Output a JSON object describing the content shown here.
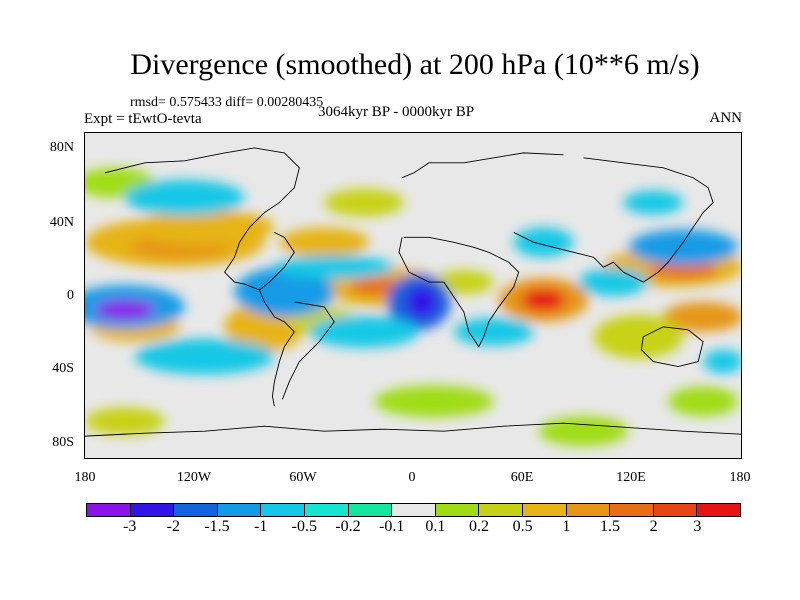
{
  "title": "Divergence (smoothed) at 200 hPa (10**6 m/s)",
  "stats": "rmsd= 0.575433 diff= 0.00280435",
  "expt": "Expt = tEwtO-tevta",
  "period": "3064kyr BP - 0000kyr BP",
  "season": "ANN",
  "lat_labels": [
    "80N",
    "40N",
    "0",
    "40S",
    "80S"
  ],
  "lon_labels": [
    "180",
    "120W",
    "60W",
    "0",
    "60E",
    "120E",
    "180"
  ],
  "colorbar": {
    "colors": [
      "#8a14e8",
      "#3314e6",
      "#1464dc",
      "#149be6",
      "#14c8e6",
      "#14e6d2",
      "#14e6a0",
      "#e8e8e8",
      "#a0dc14",
      "#c8d214",
      "#e6b414",
      "#e69614",
      "#e66e14",
      "#e64614",
      "#e61414"
    ],
    "labels": [
      "-3",
      "-2",
      "-1.5",
      "-1",
      "-0.5",
      "-0.2",
      "-0.1",
      "0.1",
      "0.2",
      "0.5",
      "1",
      "1.5",
      "2",
      "3"
    ]
  }
}
